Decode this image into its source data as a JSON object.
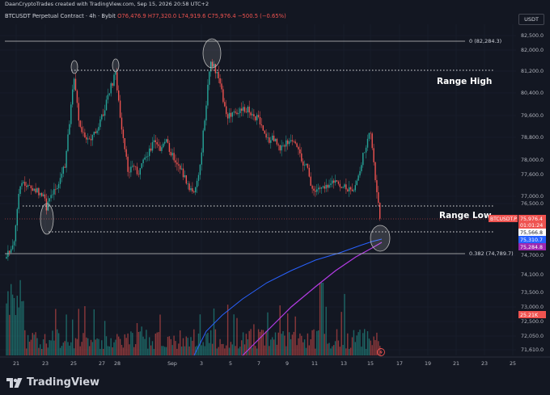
{
  "header": {
    "attribution": "DaanCryptoTrades created with TradingView.com, Sep 15, 2026 20:58 UTC+2"
  },
  "info": {
    "symbol": "BTCUSDT Perpetual Contract · 4h · Bybit",
    "open": "O76,476.9",
    "high": "H77,320.0",
    "low": "L74,919.6",
    "close": "C75,976.4",
    "change": "−500.5 (−0.65%)"
  },
  "currency_button": "USDT",
  "annotations": {
    "range_high": "Range High",
    "range_low": "Range Low",
    "fib0": "0 (82,284.3)",
    "fib382": "0.382 (74,789.7)"
  },
  "price_labels": {
    "symbol_tag": "BTCUSDT.P",
    "current_price": "75,976.4",
    "countdown": "01:01:24",
    "p1": "75,566.8",
    "p2": "75,310.7",
    "p3": "75,284.8",
    "volume": "25.21K"
  },
  "colors": {
    "background": "#131722",
    "up": "#26a69a",
    "down": "#ef5350",
    "ma_blue": "#2962ff",
    "ma_purple": "#b43ce6",
    "text": "#d1d4dc"
  },
  "logo_text": "TradingView",
  "chart_data": {
    "type": "candlestick",
    "y_ticks": [
      "82,500.0",
      "82,000.0",
      "81,200.0",
      "80,400.0",
      "79,600.0",
      "78,800.0",
      "78,000.0",
      "77,600.0",
      "77,000.0",
      "76,500.0",
      "74,700.0",
      "74,100.0",
      "73,500.0",
      "73,000.0",
      "72,500.0",
      "72,050.0",
      "71,610.0"
    ],
    "x_ticks": [
      "21",
      "23",
      "25",
      "27",
      "28",
      "Sep",
      "3",
      "5",
      "7",
      "9",
      "11",
      "13",
      "15",
      "17",
      "19",
      "21",
      "23",
      "25"
    ],
    "levels": {
      "fib0": 82284.3,
      "range_high": 81200,
      "range_low": 76400,
      "range_low_2": 75566.8,
      "fib382": 74789.7
    }
  }
}
